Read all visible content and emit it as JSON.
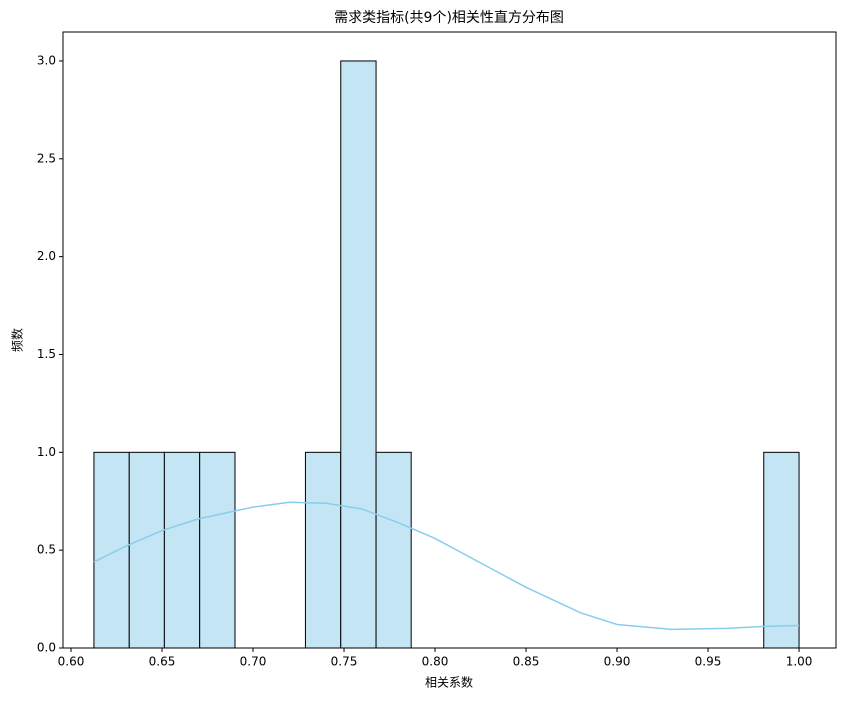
{
  "chart_data": {
    "type": "histogram",
    "title": "需求类指标(共9个)相关性直方分布图",
    "x_label": "相关系数",
    "y_label": "频数",
    "bins": [
      0.6126,
      0.632,
      0.6513,
      0.6707,
      0.6901,
      0.7095,
      0.7288,
      0.7482,
      0.7676,
      0.7869,
      0.8063,
      0.8257,
      0.845,
      0.8644,
      0.8838,
      0.9032,
      0.9225,
      0.9419,
      0.9613,
      0.9806,
      1.0
    ],
    "values": [
      1,
      1,
      1,
      1,
      0,
      0,
      1,
      3,
      1,
      0,
      0,
      0,
      0,
      0,
      0,
      0,
      0,
      0,
      0,
      1
    ],
    "color": "#c3e5f4",
    "edgecolor": "#000000",
    "kde": {
      "color": "#87ceeb",
      "x": [
        0.6126,
        0.63,
        0.65,
        0.67,
        0.7,
        0.72,
        0.74,
        0.76,
        0.78,
        0.8,
        0.82,
        0.85,
        0.88,
        0.9,
        0.93,
        0.96,
        0.98,
        1.0
      ],
      "values": [
        0.44,
        0.52,
        0.6,
        0.66,
        0.72,
        0.745,
        0.74,
        0.71,
        0.64,
        0.56,
        0.46,
        0.31,
        0.18,
        0.12,
        0.095,
        0.1,
        0.11,
        0.115
      ]
    },
    "xlim": [
      0.5956,
      1.0203
    ],
    "ylim": [
      0,
      3.148
    ],
    "xticks": [
      {
        "value": 0.6,
        "label": "0.60"
      },
      {
        "value": 0.65,
        "label": "0.65"
      },
      {
        "value": 0.7,
        "label": "0.70"
      },
      {
        "value": 0.75,
        "label": "0.75"
      },
      {
        "value": 0.8,
        "label": "0.80"
      },
      {
        "value": 0.85,
        "label": "0.85"
      },
      {
        "value": 0.9,
        "label": "0.90"
      },
      {
        "value": 0.95,
        "label": "0.95"
      },
      {
        "value": 1.0,
        "label": "1.00"
      }
    ],
    "yticks": [
      {
        "value": 0,
        "label": "0.0"
      },
      0.5,
      {
        "value": 1,
        "label": "1.0"
      },
      1.5,
      {
        "value": 2,
        "label": "2.0"
      },
      2.5,
      {
        "value": 3,
        "label": "3.0"
      }
    ]
  }
}
